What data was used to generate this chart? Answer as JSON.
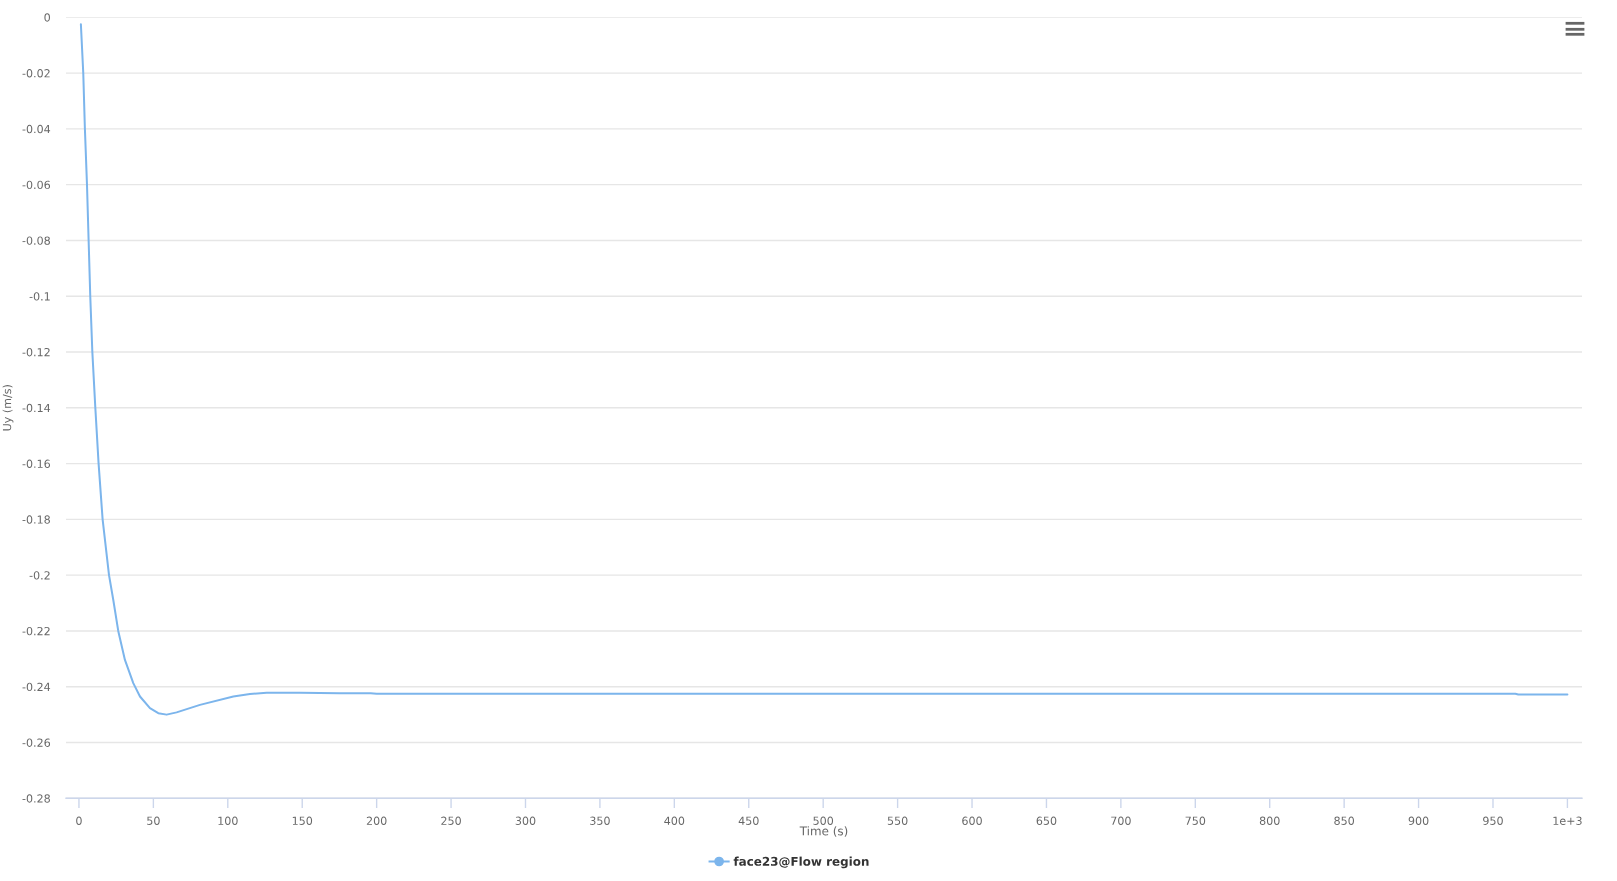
{
  "chart_data": {
    "type": "line",
    "xlabel": "Time (s)",
    "ylabel": "Uy (m/s)",
    "x": [
      1.3,
      2.9,
      4,
      5.4,
      6.5,
      7.6,
      9,
      11,
      13.2,
      15.9,
      20.2,
      23.1,
      26.4,
      30.9,
      36.5,
      41,
      47.7,
      53.3,
      58.9,
      65.6,
      81.3,
      103.7,
      114.9,
      126.1,
      148.5,
      175,
      196,
      200,
      300,
      400,
      500,
      600,
      700,
      800,
      900,
      965,
      967,
      1000
    ],
    "series": [
      {
        "name": "face23@Flow region",
        "color": "#7cb5ec",
        "values": [
          -0.0025,
          -0.02,
          -0.04,
          -0.06,
          -0.08,
          -0.1,
          -0.12,
          -0.14,
          -0.16,
          -0.18,
          -0.2,
          -0.209,
          -0.22,
          -0.2304,
          -0.2387,
          -0.2435,
          -0.2477,
          -0.2495,
          -0.25,
          -0.2492,
          -0.2465,
          -0.2435,
          -0.2426,
          -0.2422,
          -0.2422,
          -0.2423,
          -0.2423,
          -0.2425,
          -0.2425,
          -0.2425,
          -0.2425,
          -0.2425,
          -0.2425,
          -0.2425,
          -0.2425,
          -0.2425,
          -0.2428,
          -0.2428
        ]
      }
    ],
    "xlim": [
      -8.7,
      1009.8
    ],
    "ylim": [
      -0.28,
      0
    ],
    "xticks": [
      0,
      50,
      100,
      150,
      200,
      250,
      300,
      350,
      400,
      450,
      500,
      550,
      600,
      650,
      700,
      750,
      800,
      850,
      900,
      950,
      {
        "value": 1000,
        "label": "1e+3"
      }
    ],
    "yticks": [
      0,
      -0.02,
      -0.04,
      -0.06,
      -0.08,
      -0.1,
      -0.12,
      -0.14,
      -0.16,
      -0.18,
      -0.2,
      -0.22,
      -0.24,
      -0.26,
      -0.28
    ],
    "grid": "y",
    "legend": "bottom",
    "line_style": "solid"
  }
}
